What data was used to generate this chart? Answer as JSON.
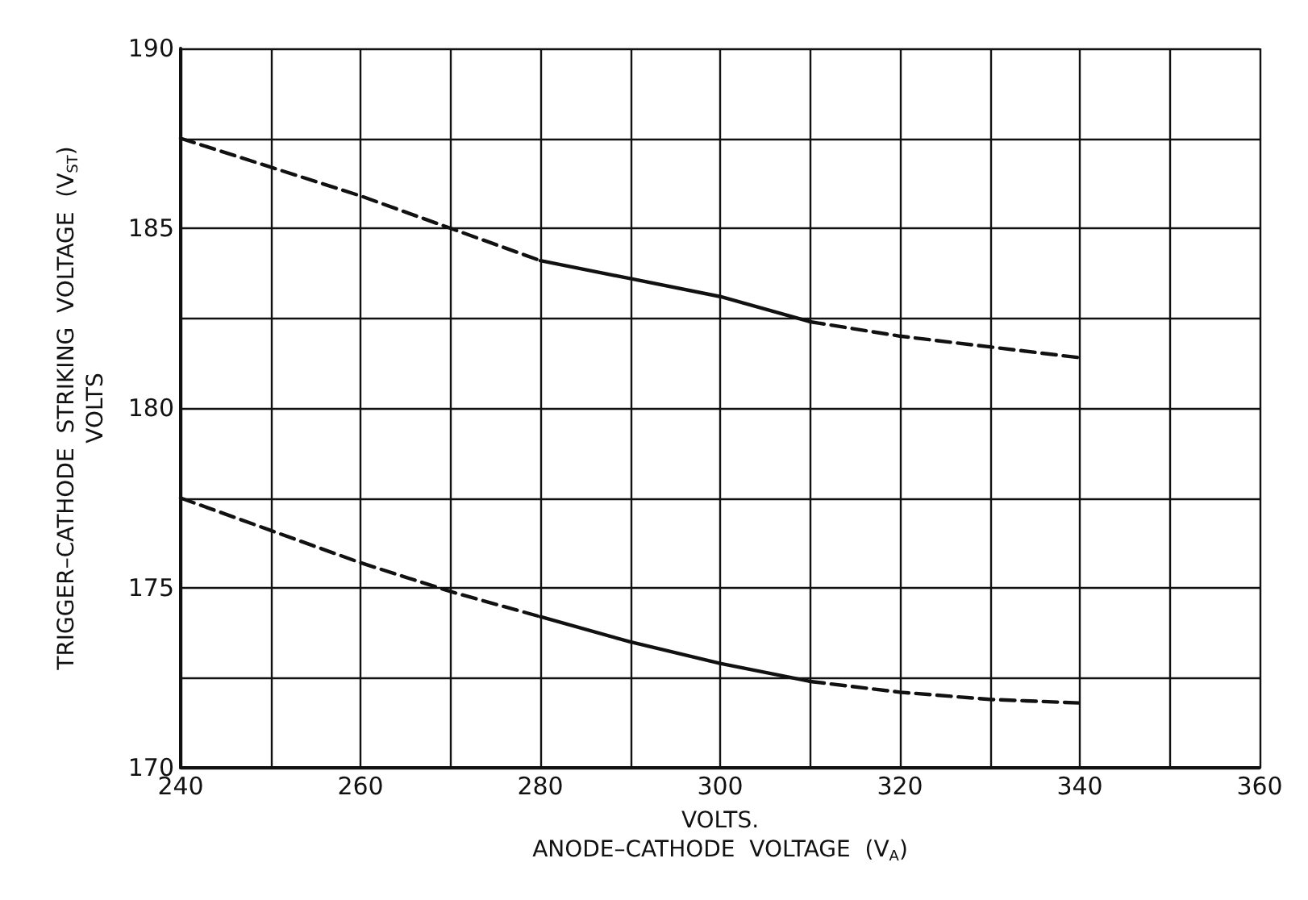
{
  "chart_data": {
    "type": "line",
    "xlabel": "VOLTS.\nANODE–CATHODE  VOLTAGE  (V$_{A}$)",
    "ylabel": "TRIGGER–CATHODE  STRIKING  VOLTAGE  (V$_{ST}$)\nVOLTS",
    "xlim": [
      240,
      360
    ],
    "xticks": [
      240,
      {
        "value": 250,
        "label": null
      },
      260,
      {
        "value": 270,
        "label": null
      },
      280,
      {
        "value": 290,
        "label": null
      },
      300,
      {
        "value": 310,
        "label": null
      },
      320,
      {
        "value": 330,
        "label": null
      },
      340,
      {
        "value": 350,
        "label": null
      },
      360
    ],
    "ylim": [
      170,
      190
    ],
    "yticks": [
      170,
      {
        "value": 172.5,
        "label": null
      },
      175,
      {
        "value": 177.5,
        "label": null
      },
      180,
      {
        "value": 182.5,
        "label": null
      },
      185,
      {
        "value": 187.5,
        "label": null
      },
      190
    ],
    "grid": true,
    "marker": "none",
    "series": [
      {
        "color": "#111111",
        "line_style": "dashed",
        "x": [
          240,
          250,
          260,
          270,
          280
        ],
        "values": [
          187.5,
          186.7,
          185.9,
          185.0,
          184.1
        ]
      },
      {
        "color": "#111111",
        "line_style": "solid",
        "x": [
          280,
          290,
          300,
          310
        ],
        "values": [
          184.1,
          183.6,
          183.1,
          182.4
        ]
      },
      {
        "color": "#111111",
        "line_style": "dashed",
        "x": [
          310,
          320,
          330,
          340
        ],
        "values": [
          182.4,
          182.0,
          181.7,
          181.4
        ]
      },
      {
        "color": "#111111",
        "line_style": "dashed",
        "x": [
          240,
          250,
          260,
          270,
          280
        ],
        "values": [
          177.5,
          176.6,
          175.7,
          174.9,
          174.2
        ]
      },
      {
        "color": "#111111",
        "line_style": "solid",
        "x": [
          280,
          290,
          300,
          310
        ],
        "values": [
          174.2,
          173.5,
          172.9,
          172.4
        ]
      },
      {
        "color": "#111111",
        "line_style": "dashed",
        "x": [
          310,
          320,
          330,
          340
        ],
        "values": [
          172.4,
          172.1,
          171.9,
          171.8
        ]
      }
    ]
  }
}
